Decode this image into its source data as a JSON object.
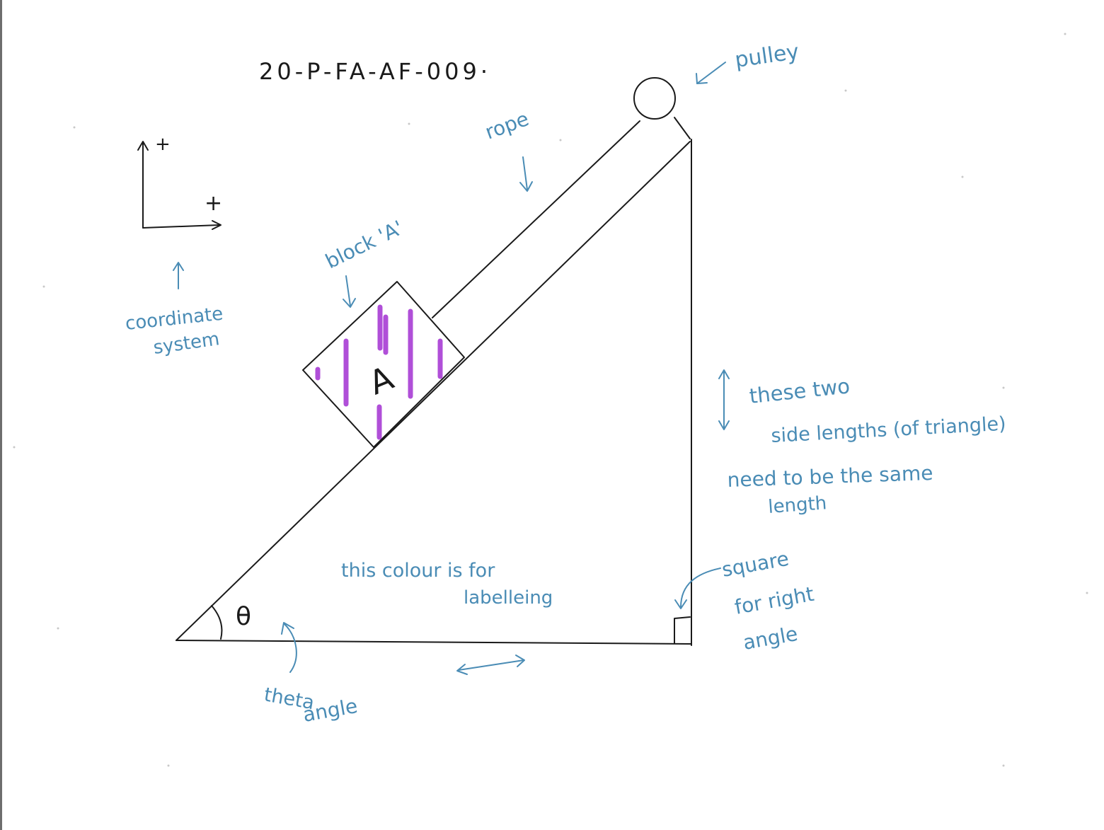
{
  "diagram": {
    "code": "20-P-FA-AF-009·",
    "block_label": "A",
    "angle_symbol": "θ",
    "axis_plus_y": "+",
    "axis_plus_x": "+",
    "colors": {
      "ink": "#1a1a1a",
      "annotation_blue": "#4a8cb5",
      "block_hatch_purple": "#b04fd8"
    }
  },
  "annotations": {
    "pulley": "pulley",
    "rope": "rope",
    "block": "block 'A'",
    "coordinate_line1": "coordinate",
    "coordinate_line2": "system",
    "sides_line1": "these two",
    "sides_line2": "side lengths (of triangle)",
    "sides_line3": "need to be the same",
    "sides_line4": "length",
    "colour_line1": "this colour is for",
    "colour_line2": "labelleing",
    "square_line1": "square",
    "square_line2": "for right",
    "square_line3": "angle",
    "theta_line1": "theta",
    "theta_line2": "angle"
  }
}
